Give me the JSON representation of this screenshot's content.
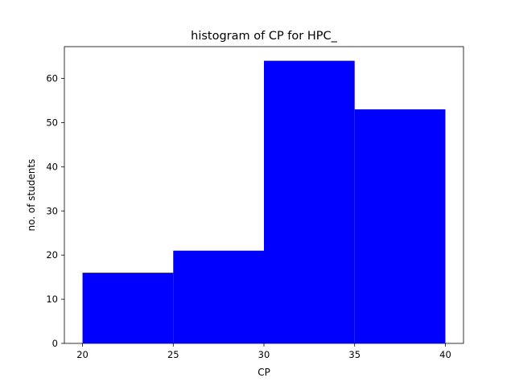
{
  "chart_data": {
    "type": "bar",
    "title": "histogram of CP for HPC_",
    "xlabel": "CP",
    "ylabel": "no. of students",
    "bins": [
      {
        "start": 20,
        "end": 25,
        "value": 16
      },
      {
        "start": 25,
        "end": 30,
        "value": 21
      },
      {
        "start": 30,
        "end": 35,
        "value": 64
      },
      {
        "start": 35,
        "end": 40,
        "value": 53
      }
    ],
    "xlim": [
      19,
      41
    ],
    "ylim": [
      0,
      67.2
    ],
    "xticks": [
      20,
      25,
      30,
      35,
      40
    ],
    "yticks": [
      0,
      10,
      20,
      30,
      40,
      50,
      60
    ],
    "bar_color": "#0000ff",
    "grid": false,
    "legend": false
  }
}
